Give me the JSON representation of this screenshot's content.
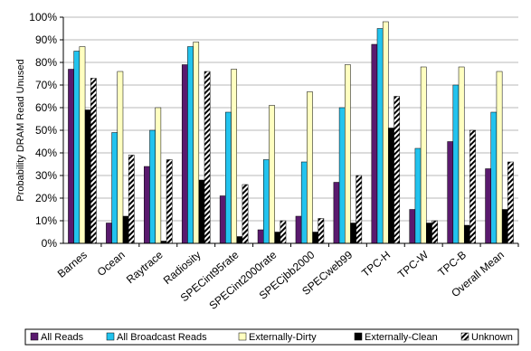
{
  "chart_data": {
    "type": "bar",
    "title": "",
    "xlabel": "",
    "ylabel": "Probability DRAM Read Unused",
    "ylim": [
      0,
      100
    ],
    "yticks": [
      "0%",
      "10%",
      "20%",
      "30%",
      "40%",
      "50%",
      "60%",
      "70%",
      "80%",
      "90%",
      "100%"
    ],
    "grid": "horizontal",
    "legend_position": "bottom",
    "categories": [
      "Barnes",
      "Ocean",
      "Raytrace",
      "Radiosity",
      "SPECint95rate",
      "SPECint2000rate",
      "SPECjbb2000",
      "SPECweb99",
      "TPC-H",
      "TPC-W",
      "TPC-B",
      "Overall Mean"
    ],
    "series": [
      {
        "name": "All Reads",
        "color": "#5a1a6e",
        "pattern": "solid",
        "values": [
          77,
          9,
          34,
          79,
          21,
          6,
          12,
          27,
          88,
          15,
          45,
          33
        ]
      },
      {
        "name": "All Broadcast Reads",
        "color": "#22c3ee",
        "pattern": "solid",
        "values": [
          85,
          49,
          50,
          87,
          58,
          37,
          36,
          60,
          95,
          42,
          70,
          58
        ]
      },
      {
        "name": "Externally-Dirty",
        "color": "#ffffc0",
        "pattern": "solid",
        "values": [
          87,
          76,
          60,
          89,
          77,
          61,
          67,
          79,
          98,
          78,
          78,
          76
        ]
      },
      {
        "name": "Externally-Clean",
        "color": "#000000",
        "pattern": "solid",
        "values": [
          59,
          12,
          1,
          28,
          3,
          5,
          5,
          9,
          51,
          9,
          8,
          15
        ]
      },
      {
        "name": "Unknown",
        "color": "#ffffff",
        "pattern": "diagonal-stripes",
        "values": [
          73,
          39,
          37,
          76,
          26,
          10,
          11,
          30,
          65,
          10,
          50,
          36
        ]
      }
    ]
  }
}
